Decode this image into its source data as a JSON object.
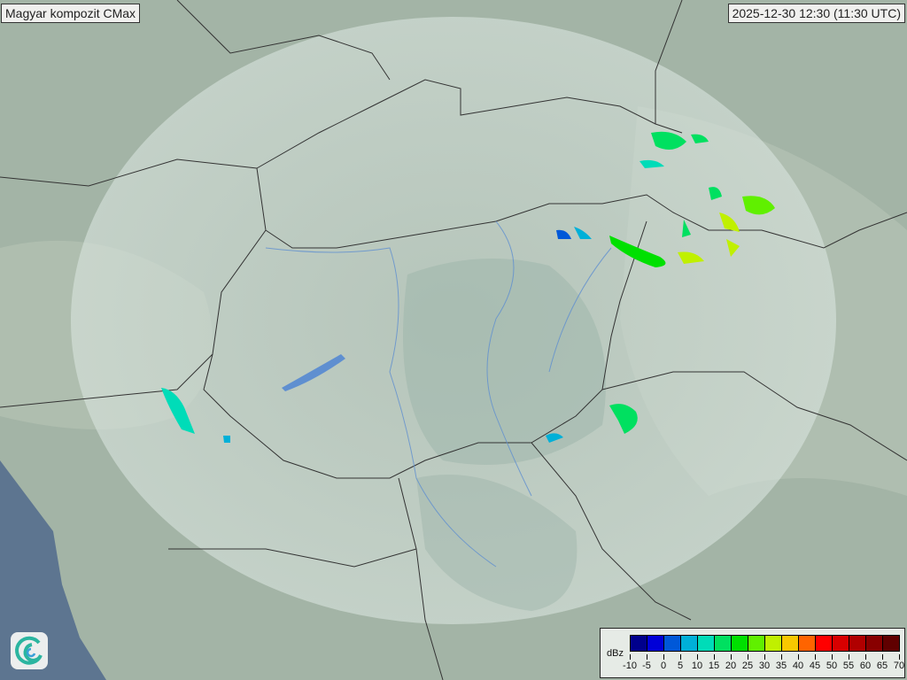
{
  "title": "Magyar kompozit  CMax",
  "timestamp": "2025-12-30 12:30 (11:30 UTC)",
  "legend": {
    "unit": "dBz",
    "ticks": [
      "-10",
      "-5",
      "0",
      "5",
      "10",
      "15",
      "20",
      "25",
      "30",
      "35",
      "40",
      "45",
      "50",
      "55",
      "60",
      "65",
      "70"
    ],
    "colors": [
      "#00008c",
      "#0000d8",
      "#0058d8",
      "#00b0d8",
      "#00dcb8",
      "#00e060",
      "#00e000",
      "#60f000",
      "#c0f000",
      "#f8c800",
      "#ff6400",
      "#ff0000",
      "#d80000",
      "#b00000",
      "#880000",
      "#600000"
    ]
  },
  "map": {
    "land_color": "#a3b4a6",
    "coverage_color": "#d6e2dc",
    "sea_color": "#5d7590",
    "border_color": "#333333",
    "river_color": "#5f8fd0"
  },
  "logo": {
    "icon": "swirl-logo-icon"
  }
}
